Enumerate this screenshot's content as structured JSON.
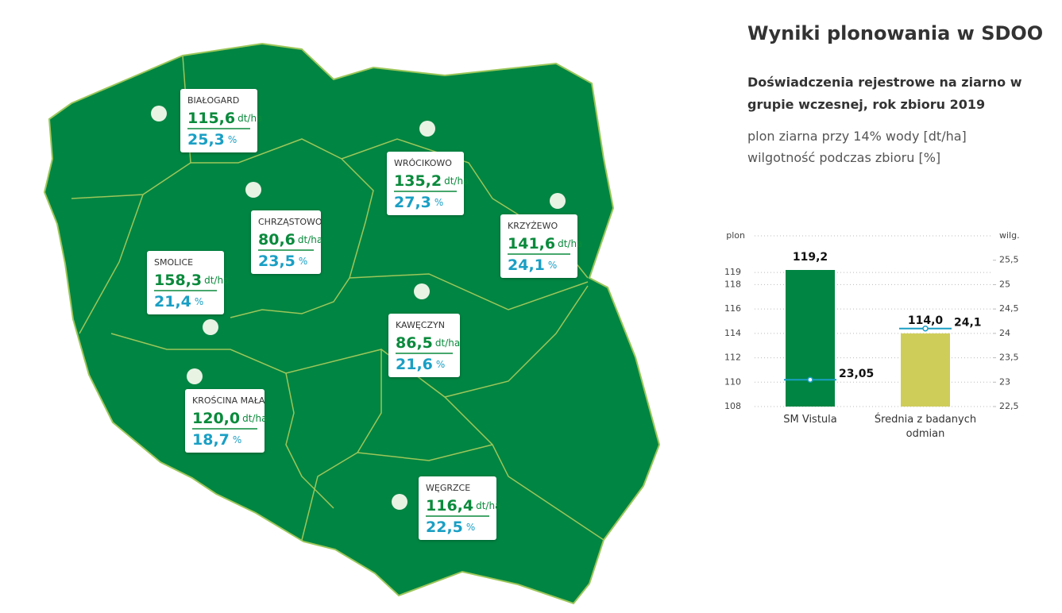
{
  "header": {
    "title": "Wyniki plonowania w SDOO",
    "subtitle": "Doświadczenia rejestrowe na ziarno w grupie wczesnej, rok zbioru 2019",
    "legend": [
      "plon ziarna przy 14% wody [dt/ha]",
      "wilgotność podczas zbioru [%]"
    ]
  },
  "map": {
    "unit_yield": "dt/ha",
    "unit_moisture": "%",
    "stations": [
      {
        "name": "BIAŁOGARD",
        "yield": "115,6",
        "moisture": "25,3"
      },
      {
        "name": "WRÓCIKOWO",
        "yield": "135,2",
        "moisture": "27,3"
      },
      {
        "name": "CHRZĄSTOWO",
        "yield": "80,6",
        "moisture": "23,5"
      },
      {
        "name": "KRZYŻEWO",
        "yield": "141,6",
        "moisture": "24,1"
      },
      {
        "name": "SMOLICE",
        "yield": "158,3",
        "moisture": "21,4"
      },
      {
        "name": "KAWĘCZYN",
        "yield": "86,5",
        "moisture": "21,6"
      },
      {
        "name": "KROŚCINA MAŁA",
        "yield": "120,0",
        "moisture": "18,7"
      },
      {
        "name": "WĘGRZCE",
        "yield": "116,4",
        "moisture": "22,5"
      }
    ]
  },
  "chart_data": {
    "type": "bar",
    "ylabel": "plon",
    "y2label": "wilg.",
    "categories": [
      "SM Vistula",
      "Średnia z badanych odmian"
    ],
    "series": [
      {
        "color": "#008542",
        "values": [
          119.2,
          114.0
        ],
        "value_labels": [
          "119,2",
          "114,0"
        ]
      },
      {
        "type": "line",
        "axis": "y2",
        "color": "#1a9fc4",
        "values": [
          23.05,
          24.1
        ],
        "value_labels": [
          "23,05",
          "24,1"
        ]
      }
    ],
    "ylim": [
      108,
      122
    ],
    "yticks": [
      108,
      110,
      112,
      114,
      116,
      118,
      119
    ],
    "y2lim": [
      22.5,
      26
    ],
    "y2ticks": [
      {
        "value": 22.5,
        "label": "22,5"
      },
      23,
      {
        "value": 23.5,
        "label": "23,5"
      },
      24,
      {
        "value": 24.5,
        "label": "24,5"
      },
      25,
      {
        "value": 25.5,
        "label": "25,5"
      }
    ],
    "grid": true,
    "bar_colors": [
      "#008542",
      "#cfcd5a"
    ]
  }
}
